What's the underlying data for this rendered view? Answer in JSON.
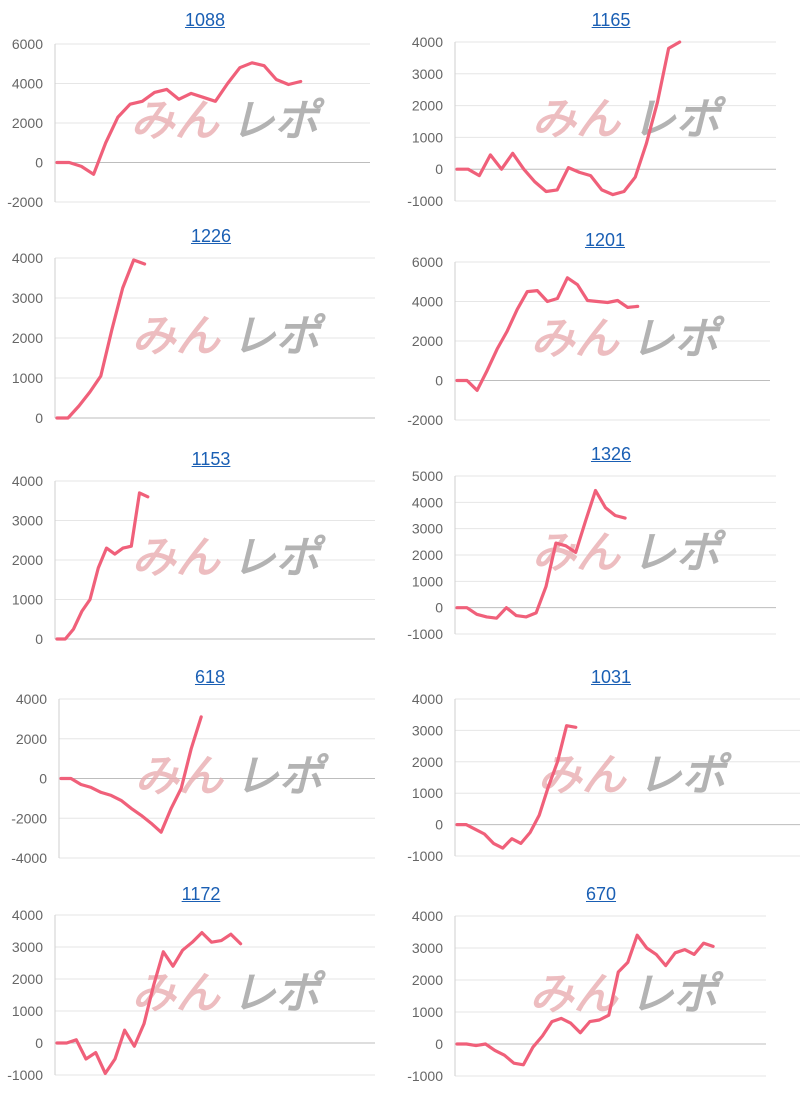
{
  "watermark": {
    "part1": "みん",
    "part2": "レポ"
  },
  "colors": {
    "line": "#f0607a",
    "link": "#1a5fb4"
  },
  "chart_data": [
    {
      "type": "line",
      "title": "1088",
      "ylim": [
        -2000,
        6000
      ],
      "yticks": [
        -2000,
        0,
        2000,
        4000,
        6000
      ],
      "values": [
        0,
        0,
        -200,
        -600,
        1000,
        2300,
        2950,
        3100,
        3550,
        3700,
        3200,
        3500,
        3300,
        3100,
        4000,
        4800,
        5050,
        4900,
        4200,
        3950,
        4100
      ]
    },
    {
      "type": "line",
      "title": "1165",
      "ylim": [
        -1000,
        4000
      ],
      "yticks": [
        -1000,
        0,
        1000,
        2000,
        3000,
        4000
      ],
      "values": [
        0,
        0,
        -200,
        450,
        0,
        500,
        0,
        -400,
        -700,
        -650,
        50,
        -100,
        -200,
        -650,
        -800,
        -700,
        -250,
        800,
        2100,
        3800,
        4000
      ]
    },
    {
      "type": "line",
      "title": "1226",
      "ylim": [
        0,
        4000
      ],
      "yticks": [
        0,
        1000,
        2000,
        3000,
        4000
      ],
      "values": [
        0,
        0,
        300,
        650,
        1050,
        2200,
        3250,
        3950,
        3850
      ]
    },
    {
      "type": "line",
      "title": "1201",
      "ylim": [
        -2000,
        6000
      ],
      "yticks": [
        -2000,
        0,
        2000,
        4000,
        6000
      ],
      "values": [
        0,
        0,
        -500,
        500,
        1600,
        2500,
        3600,
        4500,
        4550,
        4000,
        4150,
        5200,
        4850,
        4050,
        4000,
        3950,
        4050,
        3700,
        3750
      ]
    },
    {
      "type": "line",
      "title": "1153",
      "ylim": [
        0,
        4000
      ],
      "yticks": [
        0,
        1000,
        2000,
        3000,
        4000
      ],
      "values": [
        0,
        0,
        250,
        700,
        1000,
        1800,
        2300,
        2150,
        2300,
        2350,
        3700,
        3600
      ]
    },
    {
      "type": "line",
      "title": "1326",
      "ylim": [
        -1000,
        5000
      ],
      "yticks": [
        -1000,
        0,
        1000,
        2000,
        3000,
        4000,
        5000
      ],
      "values": [
        0,
        0,
        -250,
        -350,
        -400,
        0,
        -300,
        -350,
        -200,
        800,
        2450,
        2350,
        2100,
        3300,
        4450,
        3800,
        3500,
        3400
      ]
    },
    {
      "type": "line",
      "title": "618",
      "ylim": [
        -4000,
        4000
      ],
      "yticks": [
        -4000,
        -2000,
        0,
        2000,
        4000
      ],
      "values": [
        0,
        0,
        -300,
        -450,
        -700,
        -850,
        -1100,
        -1500,
        -1850,
        -2250,
        -2700,
        -1500,
        -500,
        1500,
        3100
      ]
    },
    {
      "type": "line",
      "title": "1031",
      "ylim": [
        -1000,
        4000
      ],
      "yticks": [
        -1000,
        0,
        1000,
        2000,
        3000,
        4000
      ],
      "values": [
        0,
        0,
        -150,
        -300,
        -600,
        -750,
        -450,
        -600,
        -250,
        300,
        1200,
        2000,
        3150,
        3100
      ]
    },
    {
      "type": "line",
      "title": "1172",
      "ylim": [
        -1000,
        4000
      ],
      "yticks": [
        -1000,
        0,
        1000,
        2000,
        3000,
        4000
      ],
      "values": [
        0,
        0,
        100,
        -500,
        -300,
        -950,
        -500,
        400,
        -100,
        600,
        1800,
        2850,
        2400,
        2900,
        3150,
        3450,
        3150,
        3200,
        3400,
        3100
      ]
    },
    {
      "type": "line",
      "title": "670",
      "ylim": [
        -1000,
        4000
      ],
      "yticks": [
        -1000,
        0,
        1000,
        2000,
        3000,
        4000
      ],
      "values": [
        0,
        0,
        -50,
        0,
        -200,
        -350,
        -600,
        -650,
        -100,
        250,
        700,
        800,
        650,
        350,
        700,
        750,
        900,
        2250,
        2550,
        3400,
        3000,
        2800,
        2450,
        2850,
        2950,
        2800,
        3150,
        3050
      ]
    }
  ]
}
